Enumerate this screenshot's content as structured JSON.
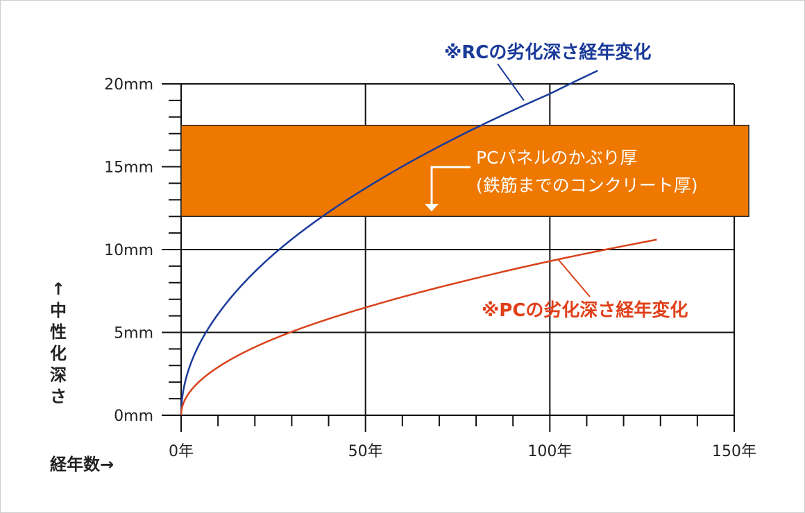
{
  "chart_data": {
    "type": "line",
    "xlabel": "経年数→",
    "ylabel": "↑中性化深さ",
    "xlim": [
      0,
      150
    ],
    "ylim": [
      0,
      20
    ],
    "x_ticks": [
      {
        "value": 0,
        "label": "0年"
      },
      {
        "value": 50,
        "label": "50年"
      },
      {
        "value": 100,
        "label": "100年"
      },
      {
        "value": 150,
        "label": "150年"
      }
    ],
    "y_ticks": [
      {
        "value": 0,
        "label": "0mm"
      },
      {
        "value": 5,
        "label": "5mm"
      },
      {
        "value": 10,
        "label": "10mm"
      },
      {
        "value": 15,
        "label": "15mm"
      },
      {
        "value": 20,
        "label": "20mm"
      }
    ],
    "grid": true,
    "series": [
      {
        "name": "※RCの劣化深さ経年変化",
        "color": "#1a3a9a",
        "x": [
          0,
          10,
          25,
          50,
          75,
          100,
          113
        ],
        "y": [
          0,
          6.1,
          9.7,
          13.7,
          16.8,
          19.4,
          20.8
        ]
      },
      {
        "name": "※PCの劣化深さ経年変化",
        "color": "#d9421a",
        "x": [
          0,
          10,
          25,
          50,
          75,
          100,
          129
        ],
        "y": [
          0,
          2.9,
          4.6,
          6.5,
          8.0,
          9.3,
          10.6
        ]
      }
    ],
    "band": {
      "from": 12,
      "to": 17.5,
      "color": "#ee7800",
      "label_lines": [
        "PCパネルのかぶり厚",
        "(鉄筋までのコンクリート厚)"
      ]
    }
  }
}
